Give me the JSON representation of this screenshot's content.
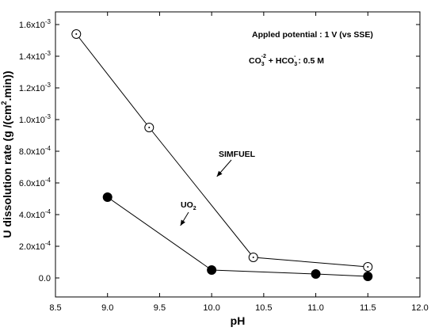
{
  "chart_data": {
    "type": "line",
    "xlabel": "pH",
    "ylabel": "U dissolution rate (g /(cm².min))",
    "xlim": [
      8.5,
      12.0
    ],
    "ylim": [
      -0.00012,
      0.00168
    ],
    "x_ticks": [
      8.5,
      9.0,
      9.5,
      10.0,
      10.5,
      11.0,
      11.5,
      12.0
    ],
    "x_tick_labels": [
      "8.5",
      "9.0",
      "9.5",
      "10.0",
      "10.5",
      "11.0",
      "11.5",
      "12.0"
    ],
    "y_ticks": [
      0.0,
      0.0002,
      0.0004,
      0.0006,
      0.0008,
      0.001,
      0.0012,
      0.0014,
      0.0016
    ],
    "y_tick_labels": [
      {
        "base": "0.0",
        "exp": ""
      },
      {
        "base": "2.0x10",
        "exp": "-4"
      },
      {
        "base": "4.0x10",
        "exp": "-4"
      },
      {
        "base": "6.0x10",
        "exp": "-4"
      },
      {
        "base": "8.0x10",
        "exp": "-4"
      },
      {
        "base": "1.0x10",
        "exp": "-3"
      },
      {
        "base": "1.2x10",
        "exp": "-3"
      },
      {
        "base": "1.4x10",
        "exp": "-3"
      },
      {
        "base": "1.6x10",
        "exp": "-3"
      }
    ],
    "grid": false,
    "series": [
      {
        "name": "SIMFUEL",
        "marker": "open-circle-dot",
        "x": [
          8.7,
          9.4,
          10.4,
          11.5
        ],
        "y": [
          0.00154,
          0.00095,
          0.00013,
          7e-05
        ]
      },
      {
        "name": "UO2",
        "marker": "filled-circle",
        "x": [
          9.0,
          10.0,
          11.0,
          11.5
        ],
        "y": [
          0.00051,
          5e-05,
          2.5e-05,
          1e-05
        ]
      }
    ],
    "labels": {
      "simfuel": {
        "text": "SIMFUEL",
        "pointer_x": 10.05,
        "pointer_y": 0.00064
      },
      "uo2": {
        "base": "UO",
        "sub": "2",
        "pointer_x": 9.7,
        "pointer_y": 0.00033
      }
    },
    "annotations": {
      "potential": "Appled potential : 1 V (vs SSE)",
      "conc": {
        "part1": "CO",
        "sub1": "3",
        "sup1": "-2",
        "part2": " + HCO",
        "sub2": "3",
        "sup2": "-",
        "part3": " : 0.5 M"
      }
    }
  }
}
